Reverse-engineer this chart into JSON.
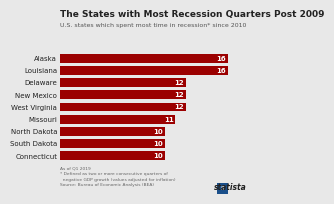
{
  "title": "The States with Most Recession Quarters Post 2009",
  "subtitle": "U.S. states which spent most time in recession* since 2010",
  "categories": [
    "Connecticut",
    "South Dakota",
    "North Dakota",
    "Missouri",
    "West Virginia",
    "New Mexico",
    "Delaware",
    "Louisiana",
    "Alaska"
  ],
  "values": [
    10,
    10,
    10,
    11,
    12,
    12,
    12,
    16,
    16
  ],
  "bar_color": "#9b0000",
  "label_color": "#ffffff",
  "text_color": "#222222",
  "subtitle_color": "#555555",
  "footnote_color": "#666666",
  "background_color": "#e8e8e8",
  "xlim": [
    0,
    17.5
  ],
  "footnote": "As of Q1 2019\n* Defined as two or more consecutive quarters of\n  negative GDP growth (values adjusted for inflation)\nSource: Bureau of Economic Analysis (BEA)",
  "title_fontsize": 6.5,
  "subtitle_fontsize": 4.5,
  "ylabel_fontsize": 5.0,
  "bar_label_fontsize": 5.0,
  "footnote_fontsize": 3.2,
  "statista_fontsize": 5.5,
  "bar_height": 0.72
}
